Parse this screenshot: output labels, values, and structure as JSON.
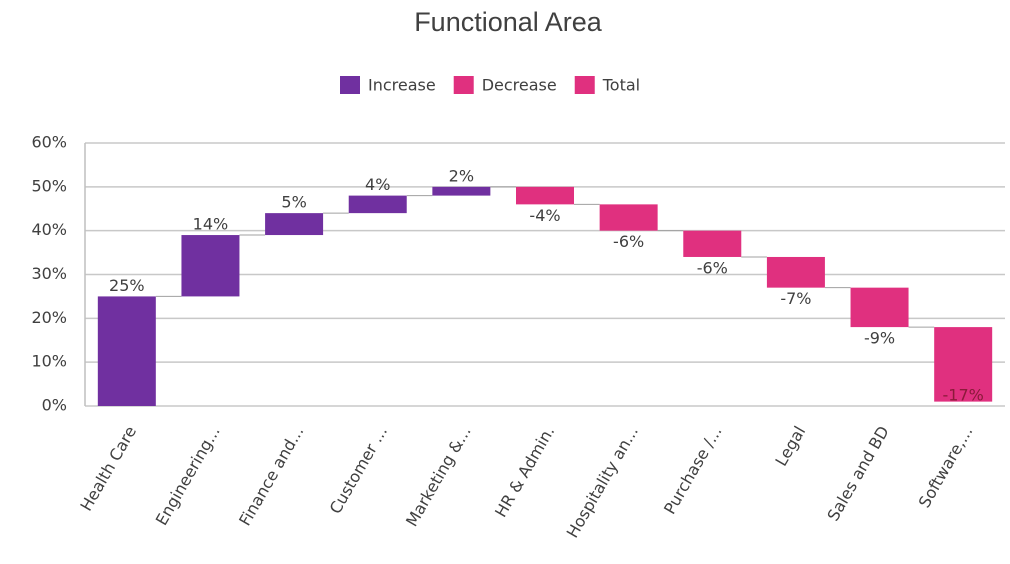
{
  "chart_data": {
    "type": "waterfall",
    "title": "Functional Area",
    "categories": [
      "Health Care",
      "Engineering...",
      "Finance and...",
      "Customer ...",
      "Marketing &...",
      "HR & Admin.",
      "Hospitality an...",
      "Purchase /...",
      "Legal",
      "Sales and BD",
      "Software,..."
    ],
    "values": [
      25,
      14,
      5,
      4,
      2,
      -4,
      -6,
      -6,
      -7,
      -9,
      -17
    ],
    "value_labels": [
      "25%",
      "14%",
      "5%",
      "4%",
      "2%",
      "-4%",
      "-6%",
      "-6%",
      "-7%",
      "-9%",
      "-17%"
    ],
    "legend": [
      {
        "name": "Increase",
        "color": "#7030a0"
      },
      {
        "name": "Decrease",
        "color": "#e0307f"
      },
      {
        "name": "Total",
        "color": "#e0307f"
      }
    ],
    "ylim": [
      0,
      60
    ],
    "yticks": [
      {
        "value": 0,
        "label": "0%"
      },
      {
        "value": 10,
        "label": "10%"
      },
      {
        "value": 20,
        "label": "20%"
      },
      {
        "value": 30,
        "label": "30%"
      },
      {
        "value": 40,
        "label": "40%"
      },
      {
        "value": 50,
        "label": "50%"
      },
      {
        "value": 60,
        "label": "60%"
      }
    ],
    "grid": true
  }
}
